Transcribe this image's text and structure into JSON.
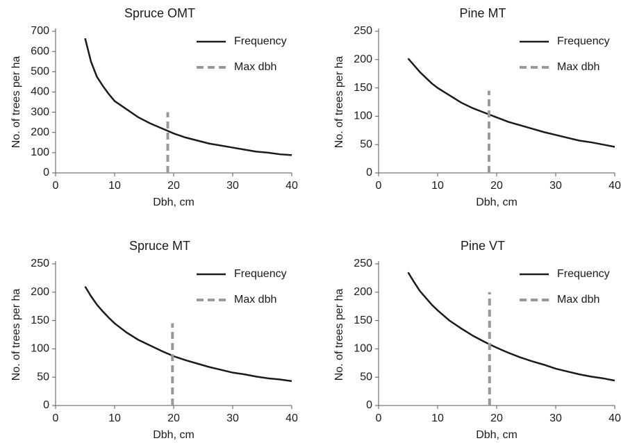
{
  "chart_data": [
    {
      "type": "line",
      "title": "Spruce OMT",
      "x_label": "Dbh, cm",
      "y_label": "No. of trees per ha",
      "xlim": [
        0,
        40
      ],
      "xticks": [
        0,
        10,
        20,
        30,
        40
      ],
      "ylim": [
        0,
        700
      ],
      "yticks": [
        0,
        100,
        200,
        300,
        400,
        500,
        600,
        700
      ],
      "legend": "top-right",
      "series": [
        {
          "name": "Frequency",
          "color": "#1a1a1a",
          "linestyle": "solid",
          "x": [
            5,
            6,
            7,
            8,
            9,
            10,
            12,
            14,
            16,
            18,
            20,
            22,
            24,
            26,
            28,
            30,
            32,
            34,
            36,
            38,
            40
          ],
          "values": [
            665,
            550,
            475,
            430,
            390,
            355,
            315,
            275,
            245,
            220,
            195,
            175,
            160,
            145,
            135,
            125,
            115,
            105,
            100,
            92,
            88
          ]
        },
        {
          "name": "Max dbh",
          "color": "#999999",
          "linestyle": "dashed",
          "x": [
            19,
            19
          ],
          "values": [
            0,
            300
          ]
        }
      ]
    },
    {
      "type": "line",
      "title": "Pine MT",
      "x_label": "Dbh, cm",
      "y_label": "No. of trees per ha",
      "xlim": [
        0,
        40
      ],
      "xticks": [
        0,
        10,
        20,
        30,
        40
      ],
      "ylim": [
        0,
        250
      ],
      "yticks": [
        0,
        50,
        100,
        150,
        200,
        250
      ],
      "legend": "top-right",
      "series": [
        {
          "name": "Frequency",
          "color": "#1a1a1a",
          "linestyle": "solid",
          "x": [
            5,
            6,
            7,
            8,
            9,
            10,
            12,
            14,
            16,
            18,
            20,
            22,
            24,
            26,
            28,
            30,
            32,
            34,
            36,
            38,
            40
          ],
          "values": [
            202,
            190,
            178,
            168,
            158,
            150,
            137,
            124,
            114,
            106,
            98,
            90,
            84,
            78,
            72,
            67,
            62,
            57,
            54,
            50,
            46
          ]
        },
        {
          "name": "Max dbh",
          "color": "#999999",
          "linestyle": "dashed",
          "x": [
            18.7,
            18.7
          ],
          "values": [
            0,
            145
          ]
        }
      ]
    },
    {
      "type": "line",
      "title": "Spruce MT",
      "x_label": "Dbh, cm",
      "y_label": "No. of trees per ha",
      "xlim": [
        0,
        40
      ],
      "xticks": [
        0,
        10,
        20,
        30,
        40
      ],
      "ylim": [
        0,
        250
      ],
      "yticks": [
        0,
        50,
        100,
        150,
        200,
        250
      ],
      "legend": "top-right",
      "series": [
        {
          "name": "Frequency",
          "color": "#1a1a1a",
          "linestyle": "solid",
          "x": [
            5,
            6,
            7,
            8,
            9,
            10,
            12,
            14,
            16,
            18,
            20,
            22,
            24,
            26,
            28,
            30,
            32,
            34,
            36,
            38,
            40
          ],
          "values": [
            210,
            193,
            178,
            166,
            155,
            145,
            129,
            116,
            106,
            96,
            87,
            80,
            74,
            68,
            63,
            58,
            55,
            51,
            48,
            46,
            43
          ]
        },
        {
          "name": "Max dbh",
          "color": "#999999",
          "linestyle": "dashed",
          "x": [
            19.8,
            19.8
          ],
          "values": [
            0,
            145
          ]
        }
      ]
    },
    {
      "type": "line",
      "title": "Pine VT",
      "x_label": "Dbh, cm",
      "y_label": "No. of trees per ha",
      "xlim": [
        0,
        40
      ],
      "xticks": [
        0,
        10,
        20,
        30,
        40
      ],
      "ylim": [
        0,
        250
      ],
      "yticks": [
        0,
        50,
        100,
        150,
        200,
        250
      ],
      "legend": "top-right",
      "series": [
        {
          "name": "Frequency",
          "color": "#1a1a1a",
          "linestyle": "solid",
          "x": [
            5,
            6,
            7,
            8,
            9,
            10,
            12,
            14,
            16,
            18,
            20,
            22,
            24,
            26,
            28,
            30,
            32,
            34,
            36,
            38,
            40
          ],
          "values": [
            235,
            218,
            202,
            190,
            178,
            168,
            150,
            136,
            123,
            112,
            102,
            93,
            85,
            78,
            72,
            65,
            60,
            55,
            51,
            48,
            44
          ]
        },
        {
          "name": "Max dbh",
          "color": "#999999",
          "linestyle": "dashed",
          "x": [
            18.8,
            18.8
          ],
          "values": [
            0,
            200
          ]
        }
      ]
    }
  ]
}
